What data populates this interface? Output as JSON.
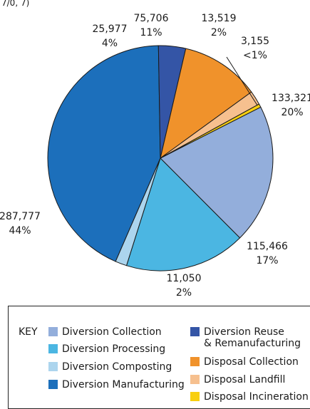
{
  "top_fragment": "7/0, 7)",
  "chart_data": {
    "type": "pie",
    "title": "",
    "slices": [
      {
        "name": "Diversion Collection",
        "value": 133321,
        "label": "133,321",
        "pct": "20%",
        "color": "#93aedb"
      },
      {
        "name": "Diversion Processing",
        "value": 115466,
        "label": "115,466",
        "pct": "17%",
        "color": "#4bb6e2"
      },
      {
        "name": "Diversion Composting",
        "value": 11050,
        "label": "11,050",
        "pct": "2%",
        "color": "#acd5ee"
      },
      {
        "name": "Diversion Manufacturing",
        "value": 287777,
        "label": "287,777",
        "pct": "44%",
        "color": "#1c6fbb"
      },
      {
        "name": "Diversion Reuse & Remanufacturing",
        "value": 25977,
        "label": "25,977",
        "pct": "4%",
        "color": "#3455a6"
      },
      {
        "name": "Disposal Collection",
        "value": 75706,
        "label": "75,706",
        "pct": "11%",
        "color": "#f0922b"
      },
      {
        "name": "Disposal Landfill",
        "value": 13519,
        "label": "13,519",
        "pct": "2%",
        "color": "#f6c08f"
      },
      {
        "name": "Disposal Incineration",
        "value": 3155,
        "label": "3,155",
        "pct": "<1%",
        "color": "#f8cf10"
      }
    ],
    "legend_position": "bottom"
  },
  "legend": {
    "title": "KEY",
    "items": [
      {
        "label": "Diversion Collection",
        "color": "#93aedb"
      },
      {
        "label": "Diversion Processing",
        "color": "#4bb6e2"
      },
      {
        "label": "Diversion Composting",
        "color": "#acd5ee"
      },
      {
        "label": "Diversion Manufacturing",
        "color": "#1c6fbb"
      },
      {
        "label": "Diversion Reuse\n& Remanufacturing",
        "color": "#3455a6"
      },
      {
        "label": "Disposal Collection",
        "color": "#f0922b"
      },
      {
        "label": "Disposal Landfill",
        "color": "#f6c08f"
      },
      {
        "label": "Disposal Incineration",
        "color": "#f8cf10"
      }
    ]
  }
}
